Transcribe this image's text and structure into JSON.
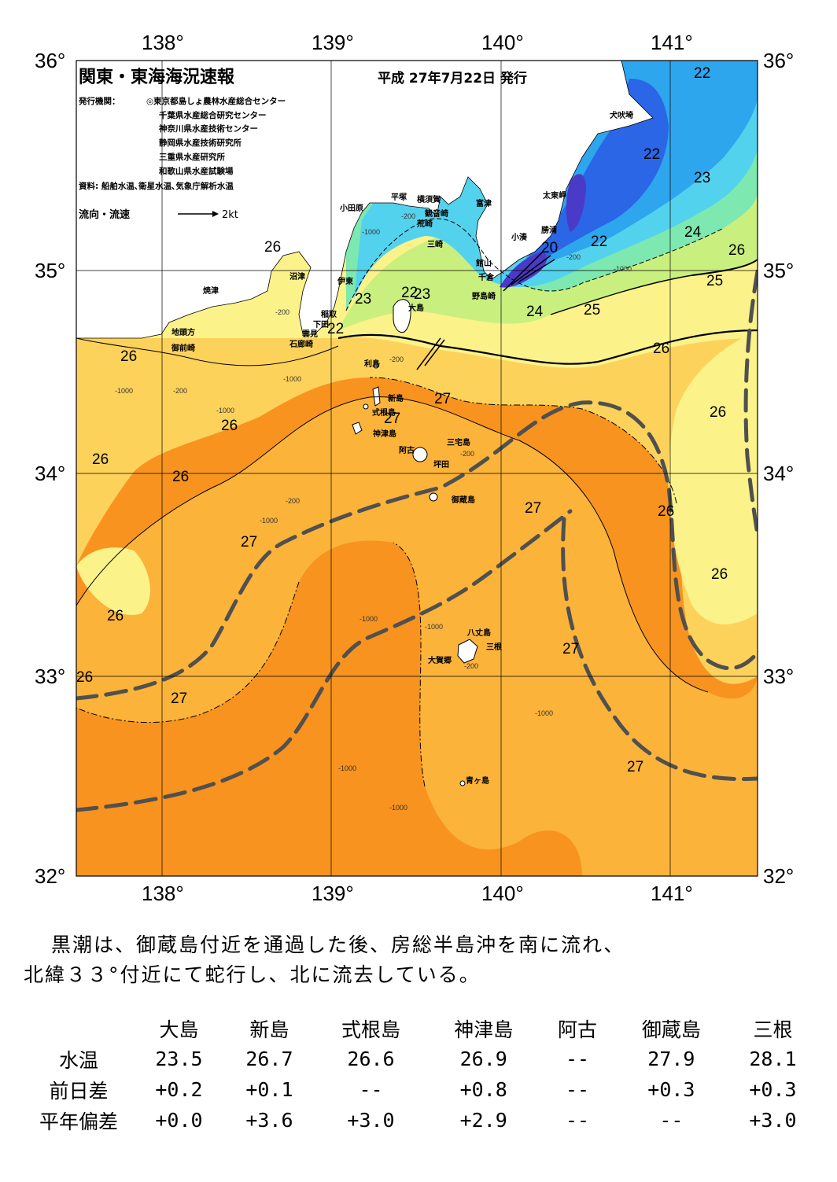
{
  "header": {
    "title": "関東・東海海況速報",
    "issued": "平成 27年7月22日 発行",
    "publisher_label": "発行機関：",
    "publishers": [
      "◎東京都島しょ農林水産総合センター",
      "千葉県水産総合研究センター",
      "神奈川県水産技術センター",
      "静岡県水産技術研究所",
      "三重県水産研究所",
      "和歌山県水産試験場"
    ],
    "sources": "資料: 船舶水温､衛星水温､気象庁解析水温",
    "legend_label": "流向・流速",
    "legend_value": "2kt"
  },
  "axes": {
    "longitudes": [
      "138°",
      "139°",
      "140°",
      "141°"
    ],
    "latitudes": [
      "36°",
      "35°",
      "34°",
      "33°",
      "32°"
    ]
  },
  "colors": {
    "t27plus": "#f7931e",
    "t27": "#fbb33a",
    "t26": "#fdd25b",
    "t25": "#fbf28a",
    "t24": "#c9ef7e",
    "t23": "#7de8b0",
    "t22": "#53d2ee",
    "t21": "#2ea6ee",
    "t20": "#2a66e6",
    "t19": "#4a3ac8",
    "land": "#ffffff",
    "kuroshio": "#505050"
  },
  "temperature_labels": [
    "22",
    "22",
    "23",
    "24",
    "26",
    "25",
    "26",
    "22",
    "20",
    "22",
    "23",
    "23",
    "24",
    "25",
    "26",
    "26",
    "23",
    "22",
    "26",
    "26",
    "26",
    "26",
    "27",
    "27",
    "27",
    "26",
    "27",
    "26",
    "26",
    "27",
    "27",
    "26",
    "27",
    "27"
  ],
  "depth_labels": [
    "-200",
    "-1000",
    "-200",
    "-1000",
    "-200",
    "-1000",
    "-200",
    "-1000",
    "-200",
    "-1000",
    "-200",
    "-1000",
    "-1000",
    "-1000",
    "-1000",
    "-1000",
    "-200",
    "-1000",
    "-200"
  ],
  "places": {
    "inubo": "犬吠埼",
    "taito": "太東岬",
    "katsuura": "勝浦",
    "kominato": "小湊",
    "tateyama": "館山",
    "chikura": "千倉",
    "nojima": "野島崎",
    "futtsu": "富津",
    "yokosuka": "横須賀",
    "kannon": "観音崎",
    "hiratsuka": "平塚",
    "arasaki": "荒崎",
    "misaki": "三崎",
    "odawara": "小田原",
    "numazu": "沼津",
    "ito": "伊東",
    "inatori": "稲取",
    "shimoda": "下田",
    "mera": "雲見",
    "irozaki": "石廊崎",
    "yaizu": "焼津",
    "jito": "地頭方",
    "omaezaki": "御前崎",
    "oshima": "大島",
    "toshima": "利島",
    "niijima": "新島",
    "shikine": "式根島",
    "kozu": "神津島",
    "miyake": "三宅島",
    "ako": "阿古",
    "tsubota": "坪田",
    "mikura": "御蔵島",
    "hachijo": "八丈島",
    "mitsune": "三根",
    "okago": "大賀郷",
    "aogashima": "青ヶ島"
  },
  "summary": {
    "line1": "黒潮は、御蔵島付近を通過した後、房総半島沖を南に流れ、",
    "line2": "北緯３３°付近にて蛇行し、北に流去している。"
  },
  "table": {
    "headers": [
      "大島",
      "新島",
      "式根島",
      "神津島",
      "阿古",
      "御蔵島",
      "三根"
    ],
    "rows": [
      {
        "label": "水温",
        "values": [
          "23.5",
          "26.7",
          "26.6",
          "26.9",
          "--",
          "27.9",
          "28.1"
        ]
      },
      {
        "label": "前日差",
        "values": [
          "+0.2",
          "+0.1",
          "--",
          "+0.8",
          "--",
          "+0.3",
          "+0.3"
        ]
      },
      {
        "label": "平年偏差",
        "values": [
          "+0.0",
          "+3.6",
          "+3.0",
          "+2.9",
          "--",
          "--",
          "+3.0"
        ]
      }
    ]
  }
}
